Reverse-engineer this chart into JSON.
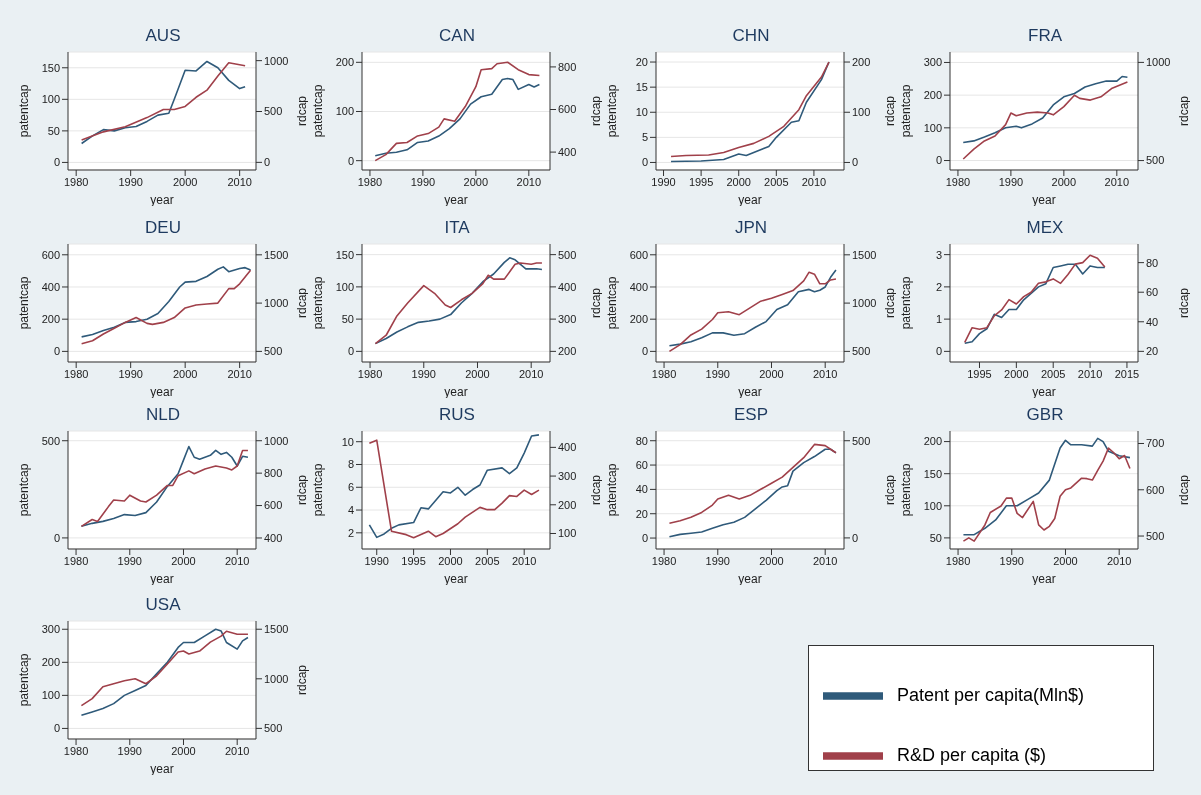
{
  "chart_data": [
    {
      "type": "line",
      "title": "AUS",
      "xlabel": "year",
      "ylabel": "patentcap",
      "y2label": "rdcap",
      "grid": "y",
      "xlim": [
        1978.5,
        2013
      ],
      "xticks": [
        1980,
        1990,
        2000,
        2010
      ],
      "ylim": [
        -12,
        175
      ],
      "yticks": [
        0,
        50,
        100,
        150
      ],
      "y2lim": [
        -75,
        1085
      ],
      "y2ticks": [
        0,
        500,
        1000
      ],
      "series": [
        {
          "color": "#2f5a7a",
          "x": [
            1981,
            1983,
            1985,
            1987,
            1989,
            1991,
            1993,
            1995,
            1997,
            1998,
            2000,
            2002,
            2004,
            2006,
            2008,
            2010,
            2011
          ],
          "values": [
            30,
            42,
            52,
            50,
            55,
            57,
            65,
            75,
            78,
            100,
            146,
            145,
            160,
            150,
            130,
            117,
            120
          ]
        },
        {
          "color": "#a0404a",
          "axis": "y2",
          "x": [
            1981,
            1985,
            1989,
            1993,
            1996,
            1998,
            2000,
            2002,
            2004,
            2006,
            2008,
            2011
          ],
          "values": [
            220,
            300,
            350,
            440,
            520,
            520,
            550,
            640,
            710,
            850,
            980,
            950
          ]
        }
      ]
    },
    {
      "type": "line",
      "title": "CAN",
      "xlabel": "year",
      "ylabel": "patentcap",
      "y2label": "rdcap",
      "grid": "y",
      "xlim": [
        1978.5,
        2014
      ],
      "xticks": [
        1980,
        1990,
        2000,
        2010
      ],
      "ylim": [
        -19,
        221
      ],
      "yticks": [
        0,
        100,
        200
      ],
      "y2lim": [
        316,
        870
      ],
      "y2ticks": [
        400,
        600,
        800
      ],
      "series": [
        {
          "color": "#2f5a7a",
          "x": [
            1981,
            1983,
            1985,
            1987,
            1989,
            1991,
            1993,
            1995,
            1997,
            1999,
            2001,
            2003,
            2005,
            2006,
            2007,
            2008,
            2010,
            2011,
            2012
          ],
          "values": [
            10,
            15,
            17,
            22,
            37,
            40,
            50,
            65,
            85,
            115,
            130,
            135,
            165,
            167,
            165,
            145,
            155,
            150,
            155
          ]
        },
        {
          "color": "#a0404a",
          "axis": "y2",
          "x": [
            1981,
            1983,
            1985,
            1987,
            1989,
            1991,
            1993,
            1994,
            1996,
            1998,
            2000,
            2001,
            2003,
            2004,
            2006,
            2008,
            2010,
            2012
          ],
          "values": [
            360,
            388,
            441,
            445,
            476,
            487,
            517,
            556,
            545,
            614,
            707,
            787,
            792,
            815,
            822,
            787,
            764,
            760
          ]
        }
      ]
    },
    {
      "type": "line",
      "title": "CHN",
      "xlabel": "year",
      "ylabel": "patentcap",
      "y2label": "rdcap",
      "grid": "y",
      "xlim": [
        1989,
        2014
      ],
      "xticks": [
        1990,
        1995,
        2000,
        2005,
        2010
      ],
      "ylim": [
        -1.5,
        22
      ],
      "yticks": [
        0,
        5,
        10,
        15,
        20
      ],
      "y2lim": [
        -15,
        220
      ],
      "y2ticks": [
        0,
        100,
        200
      ],
      "series": [
        {
          "color": "#2f5a7a",
          "x": [
            1991,
            1995,
            1998,
            2000,
            2001,
            2004,
            2005,
            2007,
            2008,
            2009,
            2011,
            2012
          ],
          "values": [
            0.2,
            0.3,
            0.6,
            1.7,
            1.4,
            3.2,
            5,
            8,
            8.3,
            12,
            16.5,
            20
          ]
        },
        {
          "color": "#a0404a",
          "axis": "y2",
          "x": [
            1991,
            1993,
            1996,
            1998,
            2000,
            2002,
            2004,
            2006,
            2008,
            2009,
            2011,
            2012
          ],
          "values": [
            12,
            14,
            15,
            20,
            30,
            38,
            52,
            72,
            105,
            133,
            170,
            200
          ]
        }
      ]
    },
    {
      "type": "line",
      "title": "FRA",
      "xlabel": "year",
      "ylabel": "patentcap",
      "y2label": "rdcap",
      "grid": "y",
      "xlim": [
        1978.5,
        2014
      ],
      "xticks": [
        1980,
        1990,
        2000,
        2010
      ],
      "ylim": [
        -29,
        332
      ],
      "yticks": [
        0,
        100,
        200,
        300
      ],
      "y2lim": [
        452,
        1053
      ],
      "y2ticks": [
        500,
        1000
      ],
      "series": [
        {
          "color": "#2f5a7a",
          "x": [
            1981,
            1983,
            1985,
            1987,
            1989,
            1991,
            1992,
            1994,
            1996,
            1998,
            2000,
            2002,
            2004,
            2006,
            2008,
            2010,
            2011,
            2012
          ],
          "values": [
            55,
            60,
            72,
            85,
            100,
            105,
            100,
            112,
            130,
            170,
            195,
            205,
            225,
            235,
            243,
            243,
            257,
            255
          ]
        },
        {
          "color": "#a0404a",
          "axis": "y2",
          "x": [
            1981,
            1983,
            1985,
            1987,
            1989,
            1990,
            1991,
            1993,
            1995,
            1997,
            1998,
            2000,
            2002,
            2003,
            2005,
            2007,
            2009,
            2012
          ],
          "values": [
            508,
            558,
            600,
            625,
            683,
            742,
            728,
            742,
            747,
            742,
            733,
            775,
            833,
            817,
            808,
            825,
            867,
            900
          ]
        }
      ]
    },
    {
      "type": "line",
      "title": "DEU",
      "xlabel": "year",
      "ylabel": "patentcap",
      "y2label": "rdcap",
      "grid": "y",
      "xlim": [
        1978.5,
        2013
      ],
      "xticks": [
        1980,
        1990,
        2000,
        2010
      ],
      "ylim": [
        -66,
        667
      ],
      "yticks": [
        0,
        200,
        400,
        600
      ],
      "y2lim": [
        390,
        1612
      ],
      "y2ticks": [
        500,
        1000,
        1500
      ],
      "series": [
        {
          "color": "#2f5a7a",
          "x": [
            1981,
            1983,
            1985,
            1987,
            1989,
            1991,
            1993,
            1995,
            1997,
            1999,
            2000,
            2002,
            2004,
            2006,
            2007,
            2008,
            2010,
            2011,
            2012
          ],
          "values": [
            90,
            105,
            130,
            150,
            180,
            185,
            200,
            235,
            310,
            400,
            430,
            435,
            465,
            510,
            525,
            495,
            515,
            520,
            505
          ]
        },
        {
          "color": "#a0404a",
          "axis": "y2",
          "x": [
            1981,
            1983,
            1985,
            1987,
            1989,
            1991,
            1993,
            1994,
            1996,
            1998,
            2000,
            2002,
            2004,
            2006,
            2008,
            2009,
            2010,
            2012
          ],
          "values": [
            580,
            610,
            680,
            740,
            800,
            850,
            790,
            780,
            800,
            850,
            950,
            980,
            990,
            1000,
            1150,
            1150,
            1200,
            1340
          ]
        }
      ]
    },
    {
      "type": "line",
      "title": "ITA",
      "xlabel": "year",
      "ylabel": "patentcap",
      "y2label": "rdcap",
      "grid": "y",
      "xlim": [
        1978.5,
        2013.5
      ],
      "xticks": [
        1980,
        1990,
        2000,
        2010
      ],
      "ylim": [
        -16.5,
        166.5
      ],
      "yticks": [
        0,
        50,
        100,
        150
      ],
      "y2lim": [
        167,
        533
      ],
      "y2ticks": [
        200,
        300,
        400,
        500
      ],
      "series": [
        {
          "color": "#2f5a7a",
          "x": [
            1981,
            1983,
            1985,
            1987,
            1989,
            1991,
            1993,
            1995,
            1997,
            1999,
            2001,
            2003,
            2005,
            2006,
            2007,
            2009,
            2011,
            2012
          ],
          "values": [
            12,
            20,
            30,
            38,
            45,
            47,
            50,
            57,
            75,
            90,
            108,
            120,
            138,
            145,
            142,
            128,
            128,
            127
          ]
        },
        {
          "color": "#a0404a",
          "axis": "y2",
          "x": [
            1981,
            1983,
            1985,
            1987,
            1990,
            1992,
            1994,
            1995,
            1997,
            1999,
            2001,
            2002,
            2003,
            2005,
            2007,
            2008,
            2010,
            2011,
            2012
          ],
          "values": [
            224,
            250,
            310,
            350,
            404,
            380,
            344,
            336,
            360,
            380,
            410,
            436,
            424,
            424,
            470,
            474,
            470,
            474,
            474
          ]
        }
      ]
    },
    {
      "type": "line",
      "title": "JPN",
      "xlabel": "year",
      "ylabel": "patentcap",
      "y2label": "rdcap",
      "grid": "y",
      "xlim": [
        1978.5,
        2013.5
      ],
      "xticks": [
        1980,
        1990,
        2000,
        2010
      ],
      "ylim": [
        -66,
        667
      ],
      "yticks": [
        0,
        200,
        400,
        600
      ],
      "y2lim": [
        390,
        1612
      ],
      "y2ticks": [
        500,
        1000,
        1500
      ],
      "series": [
        {
          "color": "#2f5a7a",
          "x": [
            1981,
            1983,
            1985,
            1987,
            1989,
            1991,
            1993,
            1995,
            1997,
            1999,
            2001,
            2003,
            2005,
            2007,
            2008,
            2009,
            2010,
            2011,
            2012
          ],
          "values": [
            35,
            45,
            60,
            85,
            115,
            115,
            100,
            110,
            150,
            185,
            260,
            290,
            370,
            385,
            370,
            380,
            400,
            460,
            505
          ]
        },
        {
          "color": "#a0404a",
          "axis": "y2",
          "x": [
            1981,
            1983,
            1985,
            1987,
            1989,
            1990,
            1992,
            1994,
            1996,
            1998,
            2000,
            2002,
            2004,
            2006,
            2007,
            2008,
            2009,
            2010,
            2011,
            2012
          ],
          "values": [
            500,
            570,
            670,
            730,
            830,
            900,
            910,
            880,
            950,
            1020,
            1050,
            1090,
            1130,
            1230,
            1320,
            1300,
            1200,
            1200,
            1240,
            1250
          ]
        }
      ]
    },
    {
      "type": "line",
      "title": "MEX",
      "xlabel": "year",
      "ylabel": "patentcap",
      "y2label": "rdcap",
      "grid": "y",
      "xlim": [
        1991,
        2016.5
      ],
      "xticks": [
        1995,
        2000,
        2005,
        2010,
        2015
      ],
      "ylim": [
        -0.33,
        3.33
      ],
      "yticks": [
        0,
        1,
        2,
        3
      ],
      "y2lim": [
        12.8,
        92.6
      ],
      "y2ticks": [
        20,
        40,
        60,
        80
      ],
      "series": [
        {
          "color": "#2f5a7a",
          "x": [
            1993,
            1994,
            1995,
            1996,
            1997,
            1998,
            1999,
            2000,
            2001,
            2002,
            2003,
            2004,
            2005,
            2006,
            2007,
            2008,
            2009,
            2010,
            2011,
            2012
          ],
          "values": [
            0.25,
            0.3,
            0.55,
            0.7,
            1.15,
            1.05,
            1.3,
            1.3,
            1.6,
            1.8,
            2.0,
            2.1,
            2.6,
            2.65,
            2.7,
            2.7,
            2.4,
            2.65,
            2.6,
            2.6
          ]
        },
        {
          "color": "#a0404a",
          "axis": "y2",
          "x": [
            1993,
            1994,
            1995,
            1996,
            1997,
            1998,
            1999,
            2000,
            2001,
            2002,
            2003,
            2004,
            2005,
            2006,
            2007,
            2008,
            2009,
            2010,
            2011,
            2012
          ],
          "values": [
            26,
            36,
            35,
            36,
            44,
            48,
            55,
            52,
            57,
            60,
            66,
            67,
            69,
            66,
            72,
            79,
            80,
            85,
            83,
            77
          ]
        }
      ]
    },
    {
      "type": "line",
      "title": "NLD",
      "xlabel": "year",
      "ylabel": "patentcap",
      "y2label": "rdcap",
      "grid": "y",
      "xlim": [
        1978.5,
        2013.5
      ],
      "xticks": [
        1980,
        1990,
        2000,
        2010
      ],
      "ylim": [
        -57,
        550
      ],
      "yticks": [
        0,
        500
      ],
      "y2lim": [
        332,
        1060
      ],
      "y2ticks": [
        400,
        600,
        800,
        1000
      ],
      "series": [
        {
          "color": "#2f5a7a",
          "x": [
            1981,
            1983,
            1985,
            1987,
            1989,
            1991,
            1993,
            1995,
            1997,
            1999,
            2000,
            2001,
            2002,
            2003,
            2005,
            2006,
            2007,
            2008,
            2009,
            2010,
            2011,
            2012
          ],
          "values": [
            60,
            75,
            85,
            100,
            120,
            115,
            130,
            185,
            265,
            330,
            400,
            470,
            415,
            405,
            425,
            450,
            430,
            440,
            415,
            370,
            420,
            415
          ]
        },
        {
          "color": "#a0404a",
          "axis": "y2",
          "x": [
            1981,
            1983,
            1984,
            1986,
            1987,
            1989,
            1990,
            1992,
            1993,
            1995,
            1997,
            1998,
            1999,
            2001,
            2002,
            2004,
            2006,
            2008,
            2009,
            2010,
            2011,
            2012
          ],
          "values": [
            472,
            514,
            502,
            592,
            634,
            628,
            664,
            628,
            622,
            664,
            724,
            724,
            784,
            814,
            796,
            826,
            844,
            832,
            820,
            844,
            940,
            940
          ]
        }
      ]
    },
    {
      "type": "line",
      "title": "RUS",
      "xlabel": "year",
      "ylabel": "patentcap",
      "y2label": "rdcap",
      "grid": "y",
      "xlim": [
        1988,
        2013.5
      ],
      "xticks": [
        1990,
        1995,
        2000,
        2005,
        2010
      ],
      "ylim": [
        0.58,
        10.94
      ],
      "yticks": [
        2,
        4,
        6,
        8,
        10
      ],
      "y2lim": [
        46,
        457
      ],
      "y2ticks": [
        100,
        200,
        300,
        400
      ],
      "series": [
        {
          "color": "#2f5a7a",
          "x": [
            1989,
            1990,
            1991,
            1992,
            1993,
            1995,
            1996,
            1997,
            1999,
            2000,
            2001,
            2002,
            2003,
            2004,
            2005,
            2007,
            2008,
            2009,
            2010,
            2011,
            2012
          ],
          "values": [
            2.7,
            1.6,
            1.9,
            2.4,
            2.7,
            2.9,
            4.2,
            4.1,
            5.6,
            5.5,
            6.0,
            5.3,
            5.8,
            6.2,
            7.5,
            7.7,
            7.2,
            7.7,
            9.0,
            10.5,
            10.6
          ]
        },
        {
          "color": "#a0404a",
          "axis": "y2",
          "x": [
            1989,
            1990,
            1992,
            1994,
            1995,
            1997,
            1998,
            1999,
            2001,
            2002,
            2004,
            2005,
            2006,
            2007,
            2008,
            2009,
            2010,
            2011,
            2012
          ],
          "values": [
            414,
            425,
            108,
            96,
            85,
            108,
            89,
            100,
            134,
            157,
            191,
            183,
            183,
            206,
            232,
            229,
            251,
            236,
            251
          ]
        }
      ]
    },
    {
      "type": "line",
      "title": "ESP",
      "xlabel": "year",
      "ylabel": "patentcap",
      "y2label": "rdcap",
      "grid": "y",
      "xlim": [
        1978.5,
        2013.5
      ],
      "xticks": [
        1980,
        1990,
        2000,
        2010
      ],
      "ylim": [
        -9,
        88
      ],
      "yticks": [
        0,
        20,
        40,
        60,
        80
      ],
      "y2lim": [
        -57,
        550
      ],
      "y2ticks": [
        0,
        500
      ],
      "series": [
        {
          "color": "#2f5a7a",
          "x": [
            1981,
            1983,
            1985,
            1987,
            1989,
            1991,
            1993,
            1995,
            1997,
            1999,
            2001,
            2002,
            2003,
            2004,
            2006,
            2008,
            2010,
            2011,
            2012
          ],
          "values": [
            1,
            3,
            4,
            5,
            8,
            11,
            13,
            17,
            24,
            31,
            39,
            42,
            43,
            55,
            62,
            67,
            73,
            73,
            70
          ]
        },
        {
          "color": "#a0404a",
          "axis": "y2",
          "x": [
            1981,
            1983,
            1985,
            1987,
            1989,
            1990,
            1992,
            1994,
            1996,
            1998,
            2000,
            2002,
            2004,
            2006,
            2008,
            2010,
            2011,
            2012
          ],
          "values": [
            75,
            88,
            106,
            131,
            169,
            200,
            219,
            200,
            219,
            250,
            281,
            313,
            363,
            413,
            481,
            475,
            456,
            438
          ]
        }
      ]
    },
    {
      "type": "line",
      "title": "GBR",
      "xlabel": "year",
      "ylabel": "patentcap",
      "y2label": "rdcap",
      "grid": "y",
      "xlim": [
        1978.5,
        2013.5
      ],
      "xticks": [
        1980,
        1990,
        2000,
        2010
      ],
      "ylim": [
        32.7,
        216.5
      ],
      "yticks": [
        50,
        100,
        150,
        200
      ],
      "y2lim": [
        472,
        727
      ],
      "y2ticks": [
        500,
        600,
        700
      ],
      "series": [
        {
          "color": "#2f5a7a",
          "x": [
            1981,
            1983,
            1985,
            1987,
            1989,
            1991,
            1993,
            1995,
            1997,
            1999,
            2000,
            2001,
            2003,
            2005,
            2006,
            2007,
            2008,
            2010,
            2012
          ],
          "values": [
            55,
            55,
            65,
            78,
            100,
            100,
            110,
            120,
            140,
            190,
            202,
            195,
            195,
            193,
            205,
            200,
            185,
            178,
            175
          ]
        },
        {
          "color": "#a0404a",
          "axis": "y2",
          "x": [
            1981,
            1982,
            1983,
            1985,
            1986,
            1988,
            1989,
            1990,
            1991,
            1992,
            1994,
            1995,
            1996,
            1997,
            1998,
            1999,
            2000,
            2001,
            2003,
            2004,
            2005,
            2006,
            2007,
            2008,
            2009,
            2010,
            2011,
            2012
          ],
          "values": [
            489,
            496,
            489,
            524,
            551,
            565,
            582,
            582,
            549,
            540,
            575,
            524,
            513,
            521,
            538,
            586,
            600,
            604,
            625,
            624,
            621,
            642,
            662,
            690,
            680,
            667,
            674,
            646
          ]
        }
      ]
    },
    {
      "type": "line",
      "title": "USA",
      "xlabel": "year",
      "ylabel": "patentcap",
      "y2label": "rdcap",
      "grid": "y",
      "legend": "right",
      "xlim": [
        1978.5,
        2013.5
      ],
      "xticks": [
        1980,
        1990,
        2000,
        2010
      ],
      "ylim": [
        -32,
        325
      ],
      "yticks": [
        0,
        100,
        200,
        300
      ],
      "y2lim": [
        393,
        1583
      ],
      "y2ticks": [
        500,
        1000,
        1500
      ],
      "series": [
        {
          "name": "Patent per capita(Mln$)",
          "color": "#2f5a7a",
          "x": [
            1981,
            1983,
            1985,
            1987,
            1989,
            1991,
            1993,
            1995,
            1997,
            1999,
            2000,
            2002,
            2004,
            2006,
            2007,
            2008,
            2010,
            2011,
            2012
          ],
          "values": [
            40,
            50,
            60,
            75,
            100,
            115,
            130,
            165,
            200,
            245,
            260,
            260,
            280,
            300,
            295,
            260,
            240,
            265,
            275
          ]
        },
        {
          "name": "R&D per capita ($)",
          "color": "#a0404a",
          "axis": "y2",
          "x": [
            1981,
            1983,
            1985,
            1987,
            1989,
            1991,
            1993,
            1995,
            1997,
            1999,
            2000,
            2001,
            2003,
            2005,
            2007,
            2008,
            2010,
            2012
          ],
          "values": [
            730,
            800,
            920,
            950,
            980,
            1000,
            950,
            1030,
            1150,
            1270,
            1280,
            1250,
            1280,
            1370,
            1430,
            1480,
            1450,
            1450
          ]
        }
      ]
    }
  ]
}
